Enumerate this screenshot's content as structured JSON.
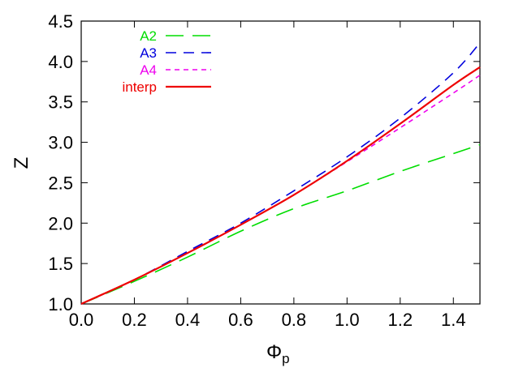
{
  "chart_data": {
    "type": "line",
    "xlabel": "Φ",
    "xlabel_sub": "p",
    "ylabel": "Z",
    "xlim": [
      0.0,
      1.5
    ],
    "ylim": [
      1.0,
      4.5
    ],
    "x_ticks": [
      0.0,
      0.2,
      0.4,
      0.6,
      0.8,
      1.0,
      1.2,
      1.4
    ],
    "x_tick_labels": [
      "0.0",
      "0.2",
      "0.4",
      "0.6",
      "0.8",
      "1.0",
      "1.2",
      "1.4"
    ],
    "y_ticks": [
      1.0,
      1.5,
      2.0,
      2.5,
      3.0,
      3.5,
      4.0,
      4.5
    ],
    "y_tick_labels": [
      "1.0",
      "1.5",
      "2.0",
      "2.5",
      "3.0",
      "3.5",
      "4.0",
      "4.5"
    ],
    "grid": false,
    "legend_position": "top-left",
    "series": [
      {
        "name": "A2",
        "color": "#00dd00",
        "dash": "long-dash",
        "x": [
          0.0,
          0.2,
          0.4,
          0.6,
          0.8,
          1.0,
          1.2,
          1.4,
          1.5
        ],
        "y": [
          1.0,
          1.28,
          1.58,
          1.9,
          2.18,
          2.4,
          2.64,
          2.86,
          2.97
        ]
      },
      {
        "name": "A3",
        "color": "#0000dd",
        "dash": "dash",
        "x": [
          0.0,
          0.2,
          0.4,
          0.6,
          0.8,
          1.0,
          1.2,
          1.4,
          1.5
        ],
        "y": [
          1.0,
          1.3,
          1.65,
          2.0,
          2.4,
          2.82,
          3.3,
          3.86,
          4.23
        ]
      },
      {
        "name": "A4",
        "color": "#ee00ee",
        "dash": "short-dash",
        "x": [
          0.0,
          0.2,
          0.4,
          0.6,
          0.8,
          1.0,
          1.2,
          1.4,
          1.5
        ],
        "y": [
          1.0,
          1.3,
          1.63,
          1.98,
          2.35,
          2.76,
          3.18,
          3.61,
          3.83
        ]
      },
      {
        "name": "interp",
        "color": "#ee0000",
        "dash": "solid",
        "x": [
          0.0,
          0.2,
          0.4,
          0.6,
          0.8,
          1.0,
          1.2,
          1.4,
          1.5
        ],
        "y": [
          1.0,
          1.3,
          1.63,
          1.98,
          2.35,
          2.77,
          3.23,
          3.71,
          3.93
        ]
      }
    ]
  }
}
